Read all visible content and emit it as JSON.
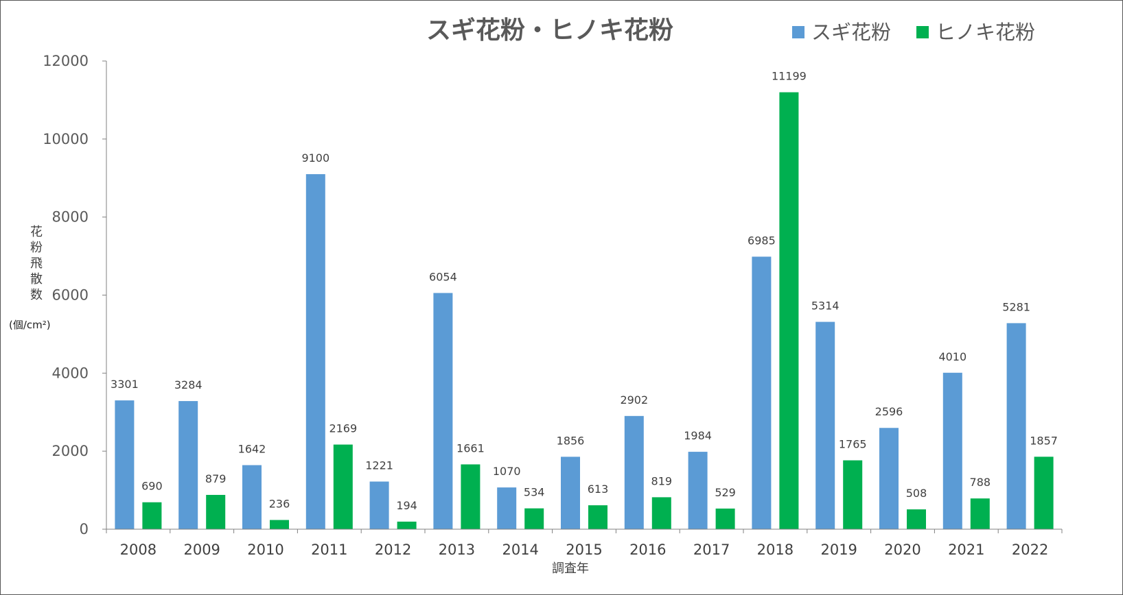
{
  "chart_data": {
    "type": "bar",
    "title": "スギ花粉・ヒノキ花粉",
    "xlabel": "調査年",
    "ylabel": "花粉飛散数",
    "yunit": "(個/cm²)",
    "categories": [
      "2008",
      "2009",
      "2010",
      "2011",
      "2012",
      "2013",
      "2014",
      "2015",
      "2016",
      "2017",
      "2018",
      "2019",
      "2020",
      "2021",
      "2022"
    ],
    "series": [
      {
        "name": "スギ花粉",
        "color": "#5b9bd5",
        "values": [
          3301,
          3284,
          1642,
          9100,
          1221,
          6054,
          1070,
          1856,
          2902,
          1984,
          6985,
          5314,
          2596,
          4010,
          5281
        ]
      },
      {
        "name": "ヒノキ花粉",
        "color": "#00b050",
        "values": [
          690,
          879,
          236,
          2169,
          194,
          1661,
          534,
          613,
          819,
          529,
          11199,
          1765,
          508,
          788,
          1857
        ]
      }
    ],
    "ylim": [
      0,
      12000
    ],
    "yticks": [
      0,
      2000,
      4000,
      6000,
      8000,
      10000,
      12000
    ],
    "legend_position": "top-right",
    "grid": false,
    "data_labels": true
  }
}
